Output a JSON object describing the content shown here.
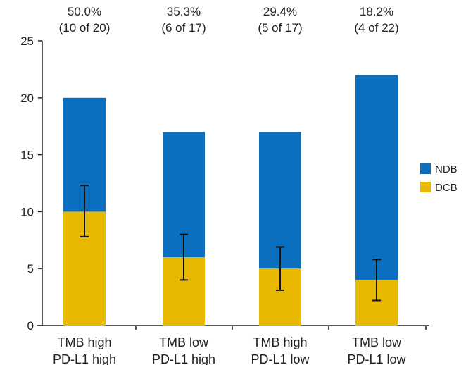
{
  "chart_data": {
    "type": "bar",
    "stacked": true,
    "categories": [
      [
        "TMB high",
        "PD-L1 high"
      ],
      [
        "TMB low",
        "PD-L1 high"
      ],
      [
        "TMB high",
        "PD-L1 low"
      ],
      [
        "TMB low",
        "PD-L1 low"
      ]
    ],
    "series": [
      {
        "name": "DCB",
        "color": "#e9b800",
        "values": [
          10,
          6,
          5,
          4
        ]
      },
      {
        "name": "NDB",
        "color": "#0b6fc0",
        "values": [
          10,
          11,
          12,
          18
        ]
      }
    ],
    "error_bars": [
      [
        7.8,
        12.3
      ],
      [
        4.0,
        8.0
      ],
      [
        3.1,
        6.9
      ],
      [
        2.2,
        5.8
      ]
    ],
    "annotations": [
      {
        "pct": "50.0%",
        "count": "(10 of 20)"
      },
      {
        "pct": "35.3%",
        "count": "(6 of 17)"
      },
      {
        "pct": "29.4%",
        "count": "(5 of 17)"
      },
      {
        "pct": "18.2%",
        "count": "(4 of 22)"
      }
    ],
    "yticks": [
      0,
      5,
      10,
      15,
      20,
      25
    ],
    "ylim": [
      0,
      25
    ],
    "xlabel": "",
    "ylabel": "",
    "title": "",
    "grid": false,
    "legend": "right"
  }
}
